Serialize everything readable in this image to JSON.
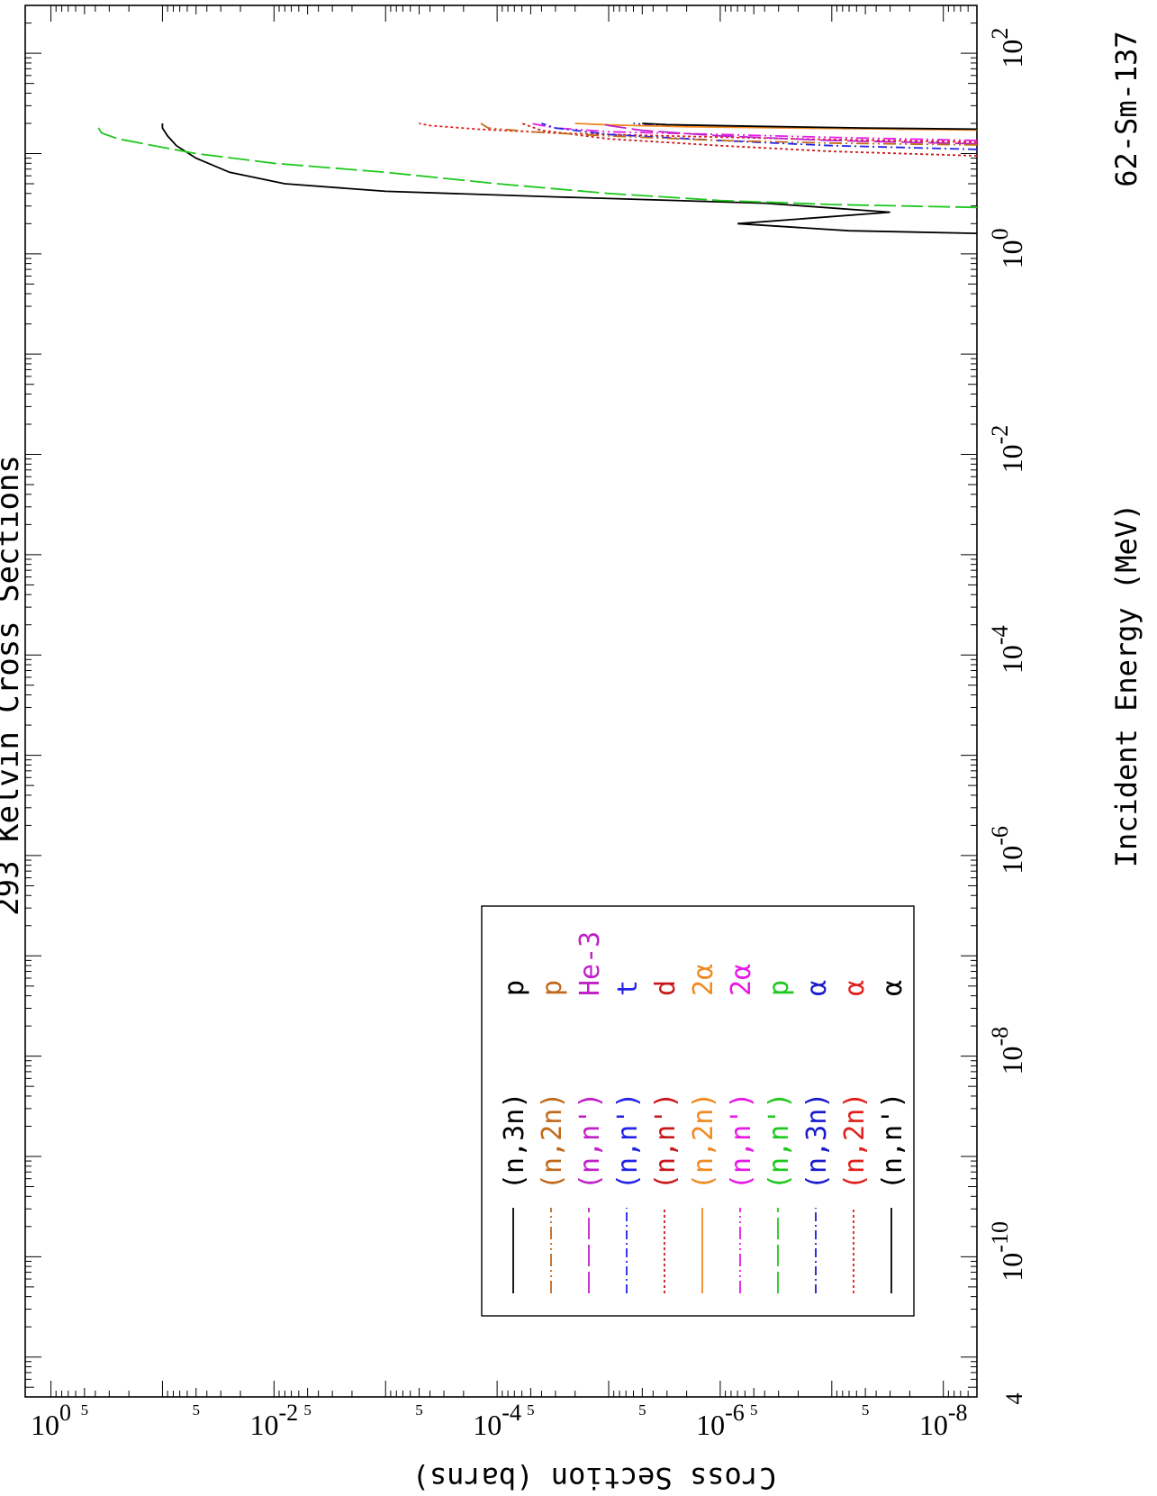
{
  "chart_data": {
    "type": "line",
    "title": "293 Kelvin Cross Sections",
    "nuclide": "62-Sm-137",
    "xlabel": "Incident Energy (MeV)",
    "ylabel": "Cross Section (barns)",
    "x_scale": "log",
    "y_scale": "log",
    "xlim": [
      4e-12,
      300
    ],
    "ylim": [
      5e-09,
      1.7
    ],
    "x_ticks": [
      {
        "value": 1e-10,
        "base": "10",
        "exp": "-10"
      },
      {
        "value": 1e-08,
        "base": "10",
        "exp": "-8"
      },
      {
        "value": 1e-06,
        "base": "10",
        "exp": "-6"
      },
      {
        "value": 0.0001,
        "base": "10",
        "exp": "-4"
      },
      {
        "value": 0.01,
        "base": "10",
        "exp": "-2"
      },
      {
        "value": 1,
        "base": "10",
        "exp": "0"
      },
      {
        "value": 100,
        "base": "10",
        "exp": "2"
      }
    ],
    "x_edge_label": "4",
    "y_ticks": [
      {
        "value": 1,
        "base": "10",
        "exp": "0"
      },
      {
        "value": 0.01,
        "base": "10",
        "exp": "-2"
      },
      {
        "value": 0.0001,
        "base": "10",
        "exp": "-4"
      },
      {
        "value": 1e-06,
        "base": "10",
        "exp": "-6"
      },
      {
        "value": 1e-08,
        "base": "10",
        "exp": "-8"
      }
    ],
    "y_minor_label": "5",
    "y_minor_values": [
      0.5,
      0.05,
      0.005,
      0.0005,
      5e-05,
      5e-06,
      5e-07,
      5e-08
    ],
    "legend_position": "upper-left",
    "series": [
      {
        "name": "(n,n') α",
        "reaction": "(n,n')",
        "product": "α",
        "color": "#000000",
        "dash": "solid",
        "x": [
          1.6,
          1.7,
          2.0,
          2.6,
          3.2,
          3.7,
          4.2,
          5.0,
          6.5,
          9.0,
          12,
          15,
          18,
          20
        ],
        "y": [
          5e-09,
          7e-08,
          7e-07,
          3e-08,
          4e-07,
          3e-05,
          0.001,
          0.008,
          0.025,
          0.05,
          0.075,
          0.09,
          0.1,
          0.1
        ]
      },
      {
        "name": "(n,2n) α",
        "reaction": "(n,2n)",
        "product": "α",
        "color": "#e0201c",
        "dash": "3,3",
        "x": [
          13.0,
          14.0,
          15.0,
          16.0,
          17.5,
          19.0,
          20.0
        ],
        "y": [
          5e-09,
          2e-07,
          3e-06,
          3e-05,
          0.00015,
          0.0004,
          0.0005
        ]
      },
      {
        "name": "(n,3n) α",
        "reaction": "(n,3n)",
        "product": "α",
        "color": "#1a1acc",
        "dash": "10,4,2,4",
        "x": [
          17.3,
          17.8,
          18.5,
          19.2,
          20.0
        ],
        "y": [
          5e-09,
          1e-07,
          1e-06,
          4e-06,
          6e-06
        ]
      },
      {
        "name": "(n,n') p",
        "reaction": "(n,n')",
        "product": "p",
        "color": "#1ec81e",
        "dash": "24,6",
        "x": [
          2.9,
          3.1,
          3.4,
          4.0,
          5.0,
          6.5,
          8.0,
          10,
          12,
          14,
          16,
          20
        ],
        "y": [
          5e-09,
          1e-07,
          1e-06,
          1e-05,
          0.0001,
          0.001,
          0.01,
          0.05,
          0.12,
          0.25,
          0.35,
          0.4
        ]
      },
      {
        "name": "(n,n') 2α",
        "reaction": "(n,n')",
        "product": "2α",
        "color": "#e818e8",
        "dash": "14,4,2,4,2,4",
        "x": [
          13.5,
          14.5,
          15.5,
          16.5,
          18.0,
          20.0
        ],
        "y": [
          5e-09,
          1e-07,
          1e-06,
          1e-05,
          3e-05,
          5e-05
        ]
      },
      {
        "name": "(n,2n) 2α",
        "reaction": "(n,2n)",
        "product": "2α",
        "color": "#f08a22",
        "dash": "solid",
        "x": [
          17.2,
          17.8,
          18.5,
          19.3,
          20.0
        ],
        "y": [
          5e-09,
          1e-07,
          2e-06,
          1e-05,
          2e-05
        ]
      },
      {
        "name": "(n,n') d",
        "reaction": "(n,n')",
        "product": "d",
        "color": "#c8181c",
        "dash": "3,3",
        "x": [
          9.5,
          10.5,
          12.0,
          14.0,
          17.0,
          20.0
        ],
        "y": [
          5e-09,
          1e-07,
          1e-06,
          1e-05,
          4e-05,
          6e-05
        ]
      },
      {
        "name": "(n,n') t",
        "reaction": "(n,n')",
        "product": "t",
        "color": "#2222e8",
        "dash": "10,4,2,4",
        "x": [
          11.0,
          12.0,
          13.5,
          15.5,
          18.0,
          20.0
        ],
        "y": [
          5e-09,
          1e-07,
          1e-06,
          1e-05,
          3e-05,
          4e-05
        ]
      },
      {
        "name": "(n,n') He-3",
        "reaction": "(n,n')",
        "product": "He-3",
        "color": "#c020c8",
        "dash": "24,6",
        "x": [
          12.5,
          13.5,
          15.0,
          17.0,
          19.0,
          20.0
        ],
        "y": [
          5e-09,
          1e-07,
          1e-06,
          5e-06,
          1e-05,
          1.2e-05
        ]
      },
      {
        "name": "(n,2n) p",
        "reaction": "(n,2n)",
        "product": "p",
        "color": "#c06a1c",
        "dash": "14,4,2,4,2,4",
        "x": [
          12.2,
          12.7,
          13.5,
          15.0,
          16.5,
          18.0,
          20.0
        ],
        "y": [
          5e-09,
          1e-07,
          1e-06,
          1e-05,
          5e-05,
          0.00012,
          0.00014
        ]
      },
      {
        "name": "(n,3n) p",
        "reaction": "(n,3n)",
        "product": "p",
        "color": "#000000",
        "dash": "solid",
        "x": [
          17.5,
          18.0,
          18.7,
          19.4,
          20.0
        ],
        "y": [
          5e-09,
          5e-08,
          5e-07,
          3e-06,
          5e-06
        ]
      }
    ]
  }
}
